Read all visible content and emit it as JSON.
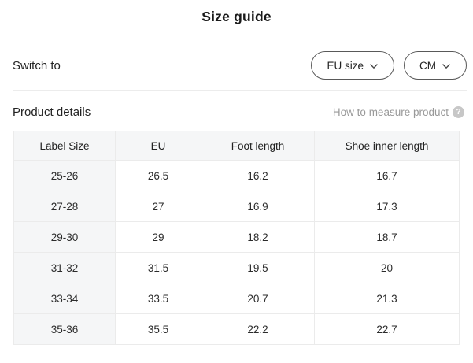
{
  "title": "Size guide",
  "switch": {
    "label": "Switch to",
    "dropdowns": [
      {
        "id": "size-standard",
        "value": "EU size",
        "icon": "chevron-down-icon"
      },
      {
        "id": "unit",
        "value": "CM",
        "icon": "chevron-down-icon"
      }
    ]
  },
  "details": {
    "heading": "Product details",
    "help_label": "How to measure product",
    "help_icon": "question-mark-icon"
  },
  "table": {
    "columns": [
      "Label Size",
      "EU",
      "Foot length",
      "Shoe inner length"
    ],
    "rows": [
      [
        "25-26",
        "26.5",
        "16.2",
        "16.7"
      ],
      [
        "27-28",
        "27",
        "16.9",
        "17.3"
      ],
      [
        "29-30",
        "29",
        "18.2",
        "18.7"
      ],
      [
        "31-32",
        "31.5",
        "19.5",
        "20"
      ],
      [
        "33-34",
        "33.5",
        "20.7",
        "21.3"
      ],
      [
        "35-36",
        "35.5",
        "22.2",
        "22.7"
      ]
    ]
  },
  "colors": {
    "title_text": "#1a1a1a",
    "body_text": "#222222",
    "muted_text": "#999999",
    "pill_border": "#595959",
    "divider": "#ececec",
    "table_border": "#ebebeb",
    "header_bg": "#f5f6f7",
    "help_icon_bg": "#c7c7c7"
  }
}
